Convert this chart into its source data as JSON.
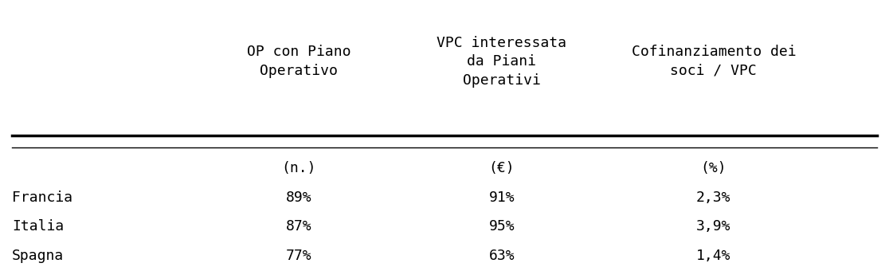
{
  "col_headers": [
    "OP con Piano\nOperativo",
    "VPC interessata\nda Piani\nOperativi",
    "Cofinanziamento dei\nsoci / VPC"
  ],
  "unit_row": [
    "(n.)",
    "(€)",
    "(%)"
  ],
  "rows": [
    [
      "Francia",
      "89%",
      "91%",
      "2,3%"
    ],
    [
      "Italia",
      "87%",
      "95%",
      "3,9%"
    ],
    [
      "Spagna",
      "77%",
      "63%",
      "1,4%"
    ]
  ],
  "bg_color": "#ffffff",
  "text_color": "#000000",
  "line_color": "#000000",
  "font_size": 13,
  "header_font_size": 13
}
